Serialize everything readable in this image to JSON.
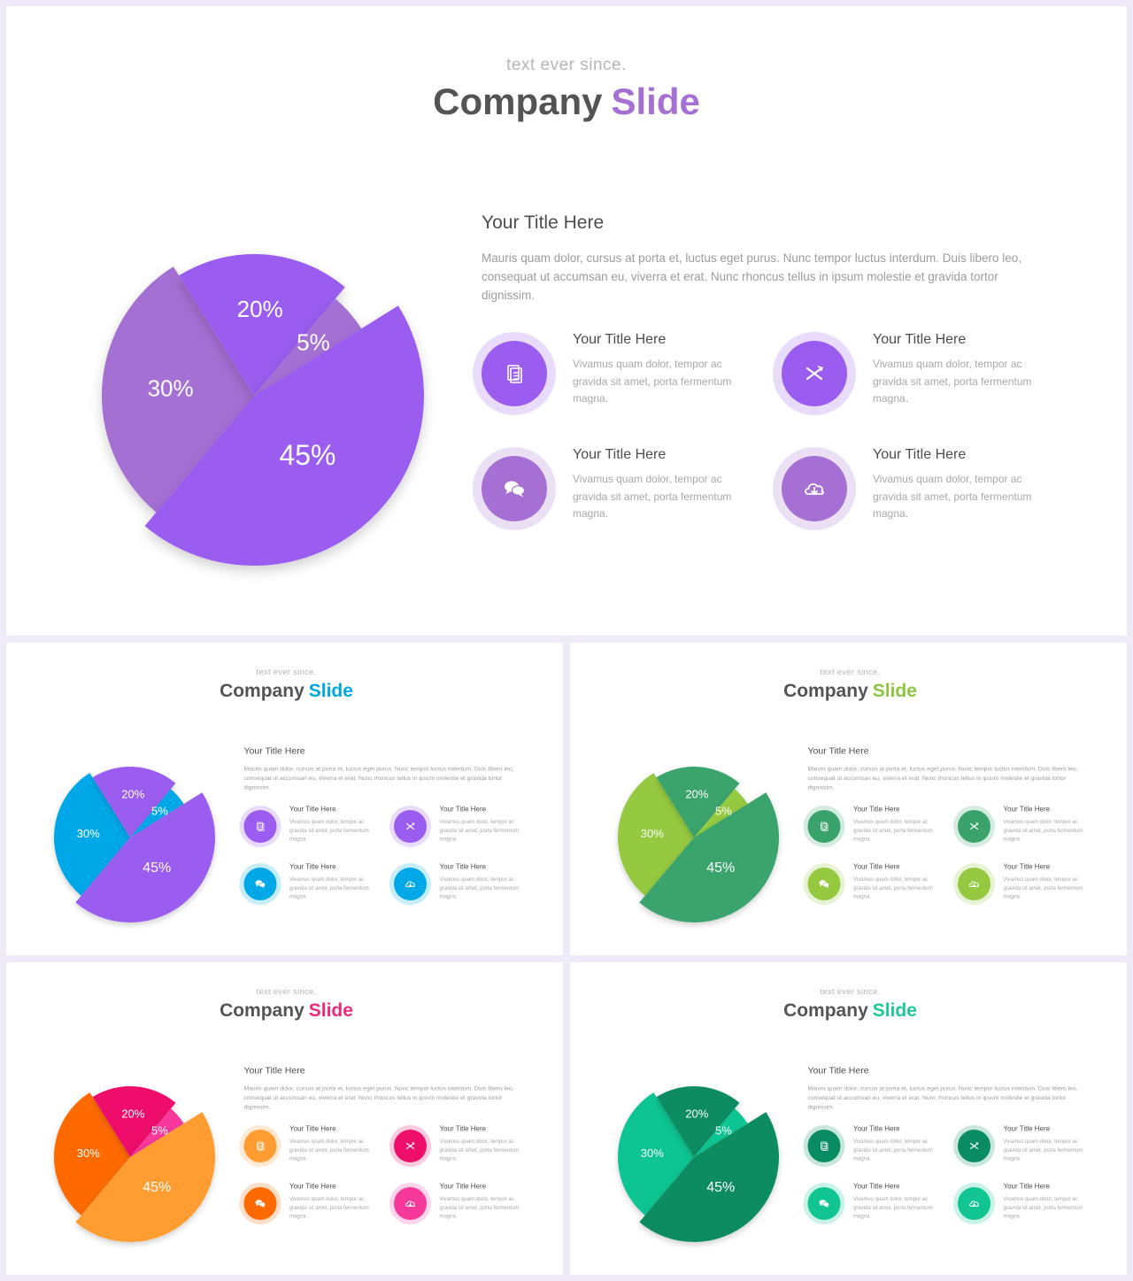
{
  "slide": {
    "subtitle": "text ever since.",
    "title_main": "Company",
    "title_accent": "Slide",
    "block_title": "Your Title Here",
    "block_text": "Mauris quam dolor, cursus at porta et, luctus eget purus. Nunc tempor luctus interdum. Duis libero leo, consequat ut accumsan eu, viverra et erat. Nunc rhoncus tellus in ipsum molestie et gravida tortor dignissim.",
    "features": [
      {
        "title": "Your Title Here",
        "text": "Vivamus quam dolor, tempor ac gravida sit amet, porta fermentum magna.",
        "icon": "document-icon"
      },
      {
        "title": "Your Title Here",
        "text": "Vivamus quam dolor, tempor ac gravida sit amet, porta fermentum magna.",
        "icon": "cross-icon"
      },
      {
        "title": "Your Title Here",
        "text": "Vivamus quam dolor, tempor ac gravida sit amet, porta fermentum magna.",
        "icon": "chat-icon"
      },
      {
        "title": "Your Title Here",
        "text": "Vivamus quam dolor, tempor ac gravida sit amet, porta fermentum magna.",
        "icon": "cloud-download-icon"
      }
    ]
  },
  "chart_data": {
    "type": "pie",
    "title": "",
    "categories": [
      "30%",
      "20%",
      "5%",
      "45%"
    ],
    "values": [
      30,
      20,
      5,
      45
    ],
    "labels": [
      "30%",
      "20%",
      "5%",
      "45%"
    ]
  },
  "themes": [
    {
      "id": "purple",
      "accent": "#a56fd4",
      "slices": [
        "#a56fd4",
        "#9a5df0",
        "#a56fd4",
        "#9a5df0"
      ],
      "icons": [
        "#9a5df0",
        "#9a5df0",
        "#a56fd4",
        "#a56fd4"
      ]
    },
    {
      "id": "blue",
      "accent": "#00a8e0",
      "slices": [
        "#00a8e8",
        "#9a5df0",
        "#00a8e8",
        "#9a5df0"
      ],
      "icons": [
        "#9a5df0",
        "#9a5df0",
        "#00a8e8",
        "#00a8e8"
      ]
    },
    {
      "id": "green",
      "accent": "#8cc63f",
      "slices": [
        "#94c940",
        "#3aa36c",
        "#94c940",
        "#3aa36c"
      ],
      "icons": [
        "#3aa36c",
        "#3aa36c",
        "#94c940",
        "#94c940"
      ]
    },
    {
      "id": "orange-pink",
      "accent": "#ee2a7b",
      "slices": [
        "#ff6a00",
        "#ee0f6a",
        "#f7399c",
        "#ff9d33"
      ],
      "icons": [
        "#ff9d33",
        "#ee0f6a",
        "#ff6a00",
        "#f7399c"
      ]
    },
    {
      "id": "teal",
      "accent": "#1cc79a",
      "slices": [
        "#10c592",
        "#0a8c62",
        "#10c592",
        "#0a8c62"
      ],
      "icons": [
        "#0a8c62",
        "#0a8c62",
        "#10c592",
        "#10c592"
      ]
    }
  ]
}
